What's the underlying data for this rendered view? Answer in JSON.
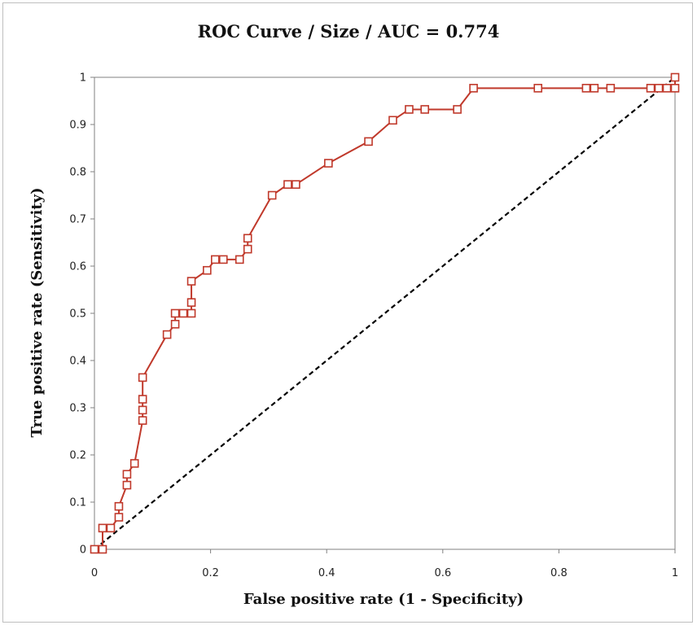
{
  "chart_data": {
    "type": "line",
    "title": "ROC Curve / Size / AUC = 0.774",
    "xlabel": "False positive rate (1 - Specificity)",
    "ylabel": "True positive rate (Sensitivity)",
    "xlim": [
      0,
      1
    ],
    "ylim": [
      0,
      1
    ],
    "x_ticks": [
      "0",
      "0.2",
      "0.4",
      "0.6",
      "0.8",
      "1"
    ],
    "y_ticks": [
      "0",
      "0.1",
      "0.2",
      "0.3",
      "0.4",
      "0.5",
      "0.6",
      "0.7",
      "0.8",
      "0.9",
      "1"
    ],
    "grid": false,
    "legend": "none",
    "series": [
      {
        "color": "#c0392b",
        "marker": "square",
        "x": [
          0,
          0.014,
          0.014,
          0.028,
          0.042,
          0.042,
          0.056,
          0.056,
          0.069,
          0.083,
          0.083,
          0.083,
          0.083,
          0.125,
          0.139,
          0.139,
          0.153,
          0.167,
          0.167,
          0.167,
          0.194,
          0.208,
          0.222,
          0.25,
          0.264,
          0.264,
          0.306,
          0.333,
          0.347,
          0.403,
          0.472,
          0.514,
          0.542,
          0.569,
          0.625,
          0.653,
          0.764,
          0.847,
          0.861,
          0.889,
          0.958,
          0.972,
          0.986,
          1.0,
          1.0
        ],
        "y": [
          0,
          0,
          0.045,
          0.045,
          0.068,
          0.091,
          0.136,
          0.159,
          0.182,
          0.273,
          0.295,
          0.318,
          0.364,
          0.455,
          0.477,
          0.5,
          0.5,
          0.5,
          0.523,
          0.568,
          0.591,
          0.614,
          0.614,
          0.614,
          0.636,
          0.659,
          0.75,
          0.773,
          0.773,
          0.818,
          0.864,
          0.909,
          0.932,
          0.932,
          0.932,
          0.977,
          0.977,
          0.977,
          0.977,
          0.977,
          0.977,
          0.977,
          0.977,
          0.977,
          1.0
        ]
      },
      {
        "color": "#000000",
        "style": "dashed",
        "x": [
          0,
          1
        ],
        "y": [
          0,
          1
        ]
      }
    ]
  }
}
